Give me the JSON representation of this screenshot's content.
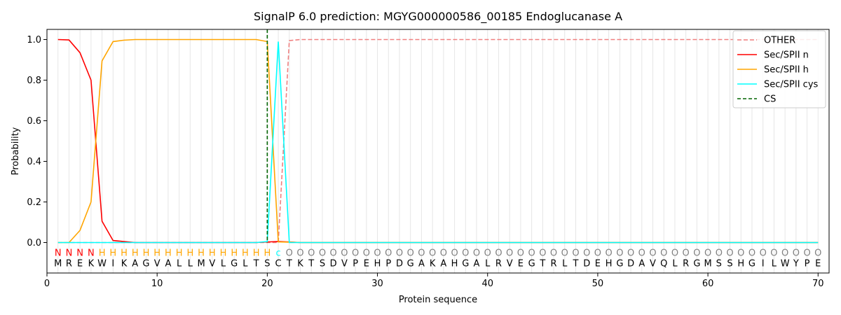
{
  "chart_data": {
    "type": "line",
    "title": "SignalP 6.0 prediction: MGYG000000586_00185 Endoglucanase A",
    "xlabel": "Protein sequence",
    "ylabel": "Probability",
    "xlim": [
      0,
      71
    ],
    "ylim": [
      -0.15,
      1.05
    ],
    "x_ticks": [
      0,
      10,
      20,
      30,
      40,
      50,
      60,
      70
    ],
    "y_ticks": [
      0.0,
      0.2,
      0.4,
      0.6,
      0.8,
      1.0
    ],
    "y_tick_labels": [
      "0.0",
      "0.2",
      "0.4",
      "0.6",
      "0.8",
      "1.0"
    ],
    "legend_position": "top-right",
    "sequence": [
      "M",
      "R",
      "E",
      "K",
      "W",
      "I",
      "K",
      "A",
      "G",
      "V",
      "A",
      "L",
      "L",
      "M",
      "V",
      "L",
      "G",
      "L",
      "T",
      "S",
      "C",
      "T",
      "K",
      "T",
      "S",
      "D",
      "V",
      "P",
      "E",
      "H",
      "P",
      "D",
      "G",
      "A",
      "K",
      "A",
      "H",
      "G",
      "A",
      "L",
      "R",
      "V",
      "E",
      "G",
      "T",
      "R",
      "L",
      "T",
      "D",
      "E",
      "H",
      "G",
      "D",
      "A",
      "V",
      "Q",
      "L",
      "R",
      "G",
      "M",
      "S",
      "S",
      "H",
      "G",
      "I",
      "L",
      "W",
      "Y",
      "P",
      "E"
    ],
    "labels": [
      "N",
      "N",
      "N",
      "N",
      "H",
      "H",
      "H",
      "H",
      "H",
      "H",
      "H",
      "H",
      "H",
      "H",
      "H",
      "H",
      "H",
      "H",
      "H",
      "H",
      "C",
      "O",
      "O",
      "O",
      "O",
      "O",
      "O",
      "O",
      "O",
      "O",
      "O",
      "O",
      "O",
      "O",
      "O",
      "O",
      "O",
      "O",
      "O",
      "O",
      "O",
      "O",
      "O",
      "O",
      "O",
      "O",
      "O",
      "O",
      "O",
      "O",
      "O",
      "O",
      "O",
      "O",
      "O",
      "O",
      "O",
      "O",
      "O",
      "O",
      "O",
      "O",
      "O",
      "O",
      "O",
      "O",
      "O",
      "O",
      "O",
      "O"
    ],
    "label_colors": {
      "N": "#ff0000",
      "H": "#ffa500",
      "C": "#00ffff",
      "O": "#808080"
    },
    "cleavage_site": 20,
    "series": [
      {
        "name": "OTHER",
        "color": "#f08080",
        "dash": true,
        "values": [
          0,
          0,
          0,
          0,
          0,
          0,
          0,
          0,
          0,
          0,
          0,
          0,
          0,
          0,
          0,
          0,
          0,
          0,
          0,
          0,
          0,
          0.995,
          1,
          1,
          1,
          1,
          1,
          1,
          1,
          1,
          1,
          1,
          1,
          1,
          1,
          1,
          1,
          1,
          1,
          1,
          1,
          1,
          1,
          1,
          1,
          1,
          1,
          1,
          1,
          1,
          1,
          1,
          1,
          1,
          1,
          1,
          1,
          1,
          1,
          1,
          1,
          1,
          1,
          1,
          1,
          1,
          1,
          1,
          1,
          1
        ]
      },
      {
        "name": "Sec/SPII n",
        "color": "#ff0000",
        "dash": false,
        "values": [
          1.0,
          0.998,
          0.935,
          0.8,
          0.105,
          0.01,
          0.005,
          0,
          0,
          0,
          0,
          0,
          0,
          0,
          0,
          0,
          0,
          0,
          0,
          0.003,
          0.005,
          0.003,
          0,
          0,
          0,
          0,
          0,
          0,
          0,
          0,
          0,
          0,
          0,
          0,
          0,
          0,
          0,
          0,
          0,
          0,
          0,
          0,
          0,
          0,
          0,
          0,
          0,
          0,
          0,
          0,
          0,
          0,
          0,
          0,
          0,
          0,
          0,
          0,
          0,
          0,
          0,
          0,
          0,
          0,
          0,
          0,
          0,
          0,
          0,
          0
        ]
      },
      {
        "name": "Sec/SPII h",
        "color": "#ffa500",
        "dash": false,
        "values": [
          0,
          0,
          0.06,
          0.2,
          0.895,
          0.99,
          0.997,
          1,
          1,
          1,
          1,
          1,
          1,
          1,
          1,
          1,
          1,
          1,
          1,
          0.99,
          0.003,
          0.002,
          0,
          0,
          0,
          0,
          0,
          0,
          0,
          0,
          0,
          0,
          0,
          0,
          0,
          0,
          0,
          0,
          0,
          0,
          0,
          0,
          0,
          0,
          0,
          0,
          0,
          0,
          0,
          0,
          0,
          0,
          0,
          0,
          0,
          0,
          0,
          0,
          0,
          0,
          0,
          0,
          0,
          0,
          0,
          0,
          0,
          0,
          0,
          0
        ]
      },
      {
        "name": "Sec/SPII cys",
        "color": "#00ffff",
        "dash": false,
        "values": [
          0,
          0,
          0,
          0,
          0,
          0,
          0,
          0,
          0,
          0,
          0,
          0,
          0,
          0,
          0,
          0,
          0,
          0,
          0,
          0.005,
          0.99,
          0,
          0,
          0,
          0,
          0,
          0,
          0,
          0,
          0,
          0,
          0,
          0,
          0,
          0,
          0,
          0,
          0,
          0,
          0,
          0,
          0,
          0,
          0,
          0,
          0,
          0,
          0,
          0,
          0,
          0,
          0,
          0,
          0,
          0,
          0,
          0,
          0,
          0,
          0,
          0,
          0,
          0,
          0,
          0,
          0,
          0,
          0,
          0,
          0
        ]
      }
    ],
    "cs_legend": {
      "name": "CS",
      "color": "#006400"
    }
  }
}
